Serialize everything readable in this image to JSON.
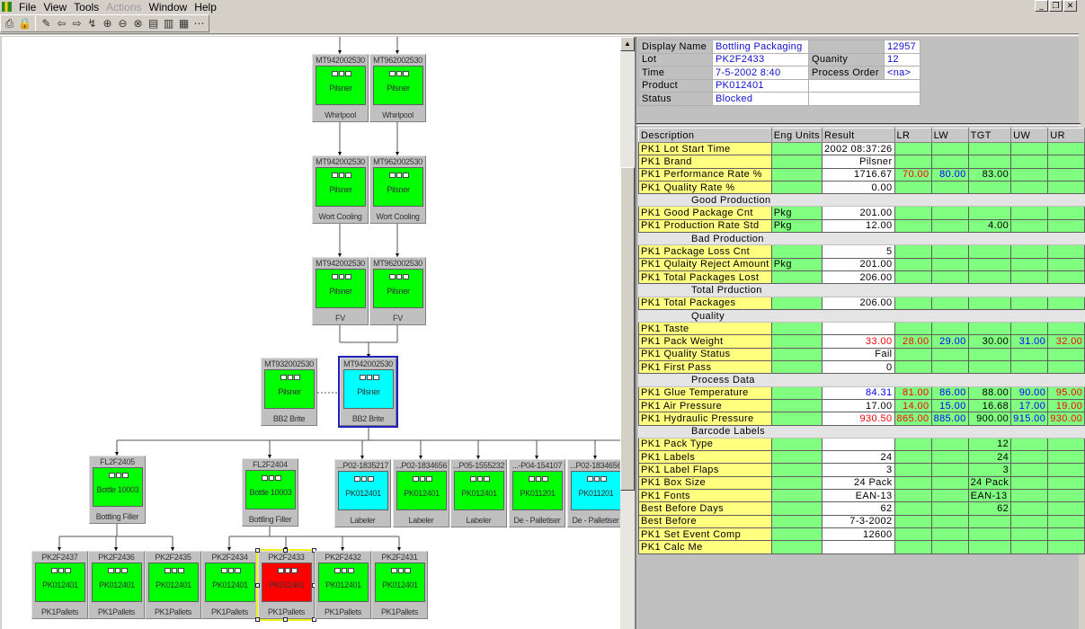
{
  "menu": {
    "items": [
      {
        "label": "File",
        "enabled": true
      },
      {
        "label": "View",
        "enabled": true
      },
      {
        "label": "Tools",
        "enabled": true
      },
      {
        "label": "Actions",
        "enabled": false
      },
      {
        "label": "Window",
        "enabled": true
      },
      {
        "label": "Help",
        "enabled": true
      }
    ]
  },
  "toolbar": {
    "icons": [
      "print-icon",
      "lock-icon",
      "pencil-icon",
      "back-arrow-icon",
      "forward-arrow-icon",
      "navigate-icon",
      "zoom-in-icon",
      "zoom-out-icon",
      "zoom-reset-icon",
      "layout-icon",
      "columns-icon",
      "grid-icon",
      "network-icon"
    ]
  },
  "colors": {
    "green": "#00ff00",
    "cyan": "#00ffff",
    "red": "#ff0000",
    "limit_red": "#ff0000",
    "limit_blue": "#0000ff"
  },
  "diagram": {
    "nodes": [
      {
        "title": "MT942002530",
        "name": "Pilsner",
        "label": "Whirlpool",
        "status": "green"
      },
      {
        "title": "MT962002530",
        "name": "Pilsner",
        "label": "Whirlpool",
        "status": "green"
      },
      {
        "title": "MT942002530",
        "name": "Pilsner",
        "label": "Wort Cooling",
        "status": "green"
      },
      {
        "title": "MT962002530",
        "name": "Pilsner",
        "label": "Wort Cooling",
        "status": "green"
      },
      {
        "title": "MT942002530",
        "name": "Pilsner",
        "label": "FV",
        "status": "green"
      },
      {
        "title": "MT962002530",
        "name": "Pilsner",
        "label": "FV",
        "status": "green"
      },
      {
        "title": "MT932002530",
        "name": "Pilsner",
        "label": "BB2 Brite",
        "status": "green"
      },
      {
        "title": "MT942002530",
        "name": "Pilsner",
        "label": "BB2 Brite",
        "status": "cyan",
        "selected": true
      },
      {
        "title": "FL2F2405",
        "name": "Bottle 10003",
        "label": "Bottling Filler",
        "status": "green"
      },
      {
        "title": "FL2F2404",
        "name": "Bottle 10003",
        "label": "Bottling Filler",
        "status": "green"
      },
      {
        "title": "...P02-1835217",
        "name": "PK012401",
        "label": "Labeler",
        "status": "cyan"
      },
      {
        "title": "...P02-1834656",
        "name": "PK012401",
        "label": "Labeler",
        "status": "green"
      },
      {
        "title": "...P05-1555232",
        "name": "PK012401",
        "label": "Labeler",
        "status": "green"
      },
      {
        "title": "...-P04-154107",
        "name": "PK011201",
        "label": "De - Palletiser",
        "status": "green"
      },
      {
        "title": "...P02-1834656",
        "name": "PK011201",
        "label": "De - Palletiser",
        "status": "cyan"
      },
      {
        "title": "PK2F2437",
        "name": "PK012401",
        "label": "PK1Pallets",
        "status": "green"
      },
      {
        "title": "PK2F2436",
        "name": "PK012401",
        "label": "PK1Pallets",
        "status": "green"
      },
      {
        "title": "PK2F2435",
        "name": "PK012401",
        "label": "PK1Pallets",
        "status": "green"
      },
      {
        "title": "PK2F2434",
        "name": "PK012401",
        "label": "PK1Pallets",
        "status": "green"
      },
      {
        "title": "PK2F2433",
        "name": "PK012401",
        "label": "PK1Pallets",
        "status": "red",
        "selected": true
      },
      {
        "title": "PK2F2432",
        "name": "PK012401",
        "label": "PK1Pallets",
        "status": "green"
      },
      {
        "title": "PK2F2431",
        "name": "PK012401",
        "label": "PK1Pallets",
        "status": "green"
      }
    ]
  },
  "info": {
    "display_name_label": "Display Name",
    "display_name": "Bottling Packaging",
    "id": "12957",
    "lot_label": "Lot",
    "lot": "PK2F2433",
    "quantity_label": "Quanity",
    "quantity": "12",
    "time_label": "Time",
    "time": "7-5-2002 8:40",
    "process_order_label": "Process Order",
    "process_order": "<na>",
    "product_label": "Product",
    "product": "PK012401",
    "status_label": "Status",
    "status": "Blocked"
  },
  "grid": {
    "columns": [
      "Description",
      "Eng Units",
      "Result",
      "LR",
      "LW",
      "TGT",
      "UW",
      "UR"
    ],
    "rows": [
      {
        "desc": "PK1 Lot Start Time",
        "units": "",
        "result": "2002 08:37:26",
        "lr": "",
        "lw": "",
        "tgt": "",
        "uw": "",
        "ur": ""
      },
      {
        "desc": "PK1 Brand",
        "units": "",
        "result": "Pilsner",
        "lr": "",
        "lw": "",
        "tgt": "",
        "uw": "",
        "ur": ""
      },
      {
        "desc": "PK1 Performance Rate %",
        "units": "",
        "result": "1716.67",
        "lr": "70.00",
        "lw": "80.00",
        "tgt": "83.00",
        "uw": "",
        "ur": ""
      },
      {
        "desc": "PK1 Quality Rate %",
        "units": "",
        "result": "0.00",
        "lr": "",
        "lw": "",
        "tgt": "",
        "uw": "",
        "ur": ""
      },
      {
        "section": "Good Production"
      },
      {
        "desc": "PK1 Good Package Cnt",
        "units": "Pkg",
        "result": "201.00",
        "lr": "",
        "lw": "",
        "tgt": "",
        "uw": "",
        "ur": ""
      },
      {
        "desc": "PK1 Production Rate Std",
        "units": "Pkg",
        "result": "12.00",
        "lr": "",
        "lw": "",
        "tgt": "4.00",
        "uw": "",
        "ur": ""
      },
      {
        "section": "Bad Production"
      },
      {
        "desc": "PK1 Package Loss Cnt",
        "units": "",
        "result": "5",
        "lr": "",
        "lw": "",
        "tgt": "",
        "uw": "",
        "ur": ""
      },
      {
        "desc": "PK1 Qulaity Reject Amount",
        "units": "Pkg",
        "result": "201.00",
        "lr": "",
        "lw": "",
        "tgt": "",
        "uw": "",
        "ur": ""
      },
      {
        "desc": "PK1 Total Packages Lost",
        "units": "",
        "result": "206.00",
        "lr": "",
        "lw": "",
        "tgt": "",
        "uw": "",
        "ur": ""
      },
      {
        "section": "Total Prduction"
      },
      {
        "desc": "PK1 Total Packages",
        "units": "",
        "result": "206.00",
        "lr": "",
        "lw": "",
        "tgt": "",
        "uw": "",
        "ur": ""
      },
      {
        "section": "Quality"
      },
      {
        "desc": "PK1 Taste",
        "units": "",
        "result": "",
        "lr": "",
        "lw": "",
        "tgt": "",
        "uw": "",
        "ur": ""
      },
      {
        "desc": "PK1 Pack Weight",
        "units": "",
        "result": "33.00",
        "result_color": "red",
        "lr": "28.00",
        "lw": "29.00",
        "tgt": "30.00",
        "uw": "31.00",
        "ur": "32.00"
      },
      {
        "desc": "PK1 Quality Status",
        "units": "",
        "result": "Fail",
        "lr": "",
        "lw": "",
        "tgt": "",
        "uw": "",
        "ur": ""
      },
      {
        "desc": "PK1 First Pass",
        "units": "",
        "result": "0",
        "lr": "",
        "lw": "",
        "tgt": "",
        "uw": "",
        "ur": ""
      },
      {
        "section": "Process Data"
      },
      {
        "desc": "PK1 Glue Temperature",
        "units": "",
        "result": "84.31",
        "result_color": "blue",
        "lr": "81.00",
        "lw": "86.00",
        "tgt": "88.00",
        "uw": "90.00",
        "ur": "95.00"
      },
      {
        "desc": "PK1 Air Pressure",
        "units": "",
        "result": "17.00",
        "lr": "14.00",
        "lw": "15.00",
        "tgt": "16.68",
        "uw": "17.00",
        "ur": "19.00"
      },
      {
        "desc": "PK1 Hydraulic Pressure",
        "units": "",
        "result": "930.50",
        "result_color": "red",
        "lr": "865.00",
        "lw": "885.00",
        "tgt": "900.00",
        "uw": "915.00",
        "ur": "930.00"
      },
      {
        "section": "Barcode Labels"
      },
      {
        "desc": "PK1 Pack Type",
        "units": "",
        "result": "",
        "lr": "",
        "lw": "",
        "tgt": "12",
        "uw": "",
        "ur": ""
      },
      {
        "desc": "PK1 Labels",
        "units": "",
        "result": "24",
        "lr": "",
        "lw": "",
        "tgt": "24",
        "uw": "",
        "ur": ""
      },
      {
        "desc": "PK1 Label Flaps",
        "units": "",
        "result": "3",
        "lr": "",
        "lw": "",
        "tgt": "3",
        "uw": "",
        "ur": ""
      },
      {
        "desc": "PK1 Box Size",
        "units": "",
        "result": "24 Pack",
        "lr": "",
        "lw": "",
        "tgt": "24 Pack",
        "uw": "",
        "ur": ""
      },
      {
        "desc": "PK1 Fonts",
        "units": "",
        "result": "EAN-13",
        "lr": "",
        "lw": "",
        "tgt": "EAN-13",
        "uw": "",
        "ur": ""
      },
      {
        "desc": "Best Before Days",
        "units": "",
        "result": "62",
        "lr": "",
        "lw": "",
        "tgt": "62",
        "uw": "",
        "ur": ""
      },
      {
        "desc": "Best Before",
        "units": "",
        "result": "7-3-2002",
        "lr": "",
        "lw": "",
        "tgt": "",
        "uw": "",
        "ur": ""
      },
      {
        "desc": "PK1 Set Event Comp",
        "units": "",
        "result": "12600",
        "lr": "",
        "lw": "",
        "tgt": "",
        "uw": "",
        "ur": ""
      },
      {
        "desc": "PK1 Calc Me",
        "units": "",
        "result": "",
        "lr": "",
        "lw": "",
        "tgt": "",
        "uw": "",
        "ur": ""
      }
    ]
  }
}
